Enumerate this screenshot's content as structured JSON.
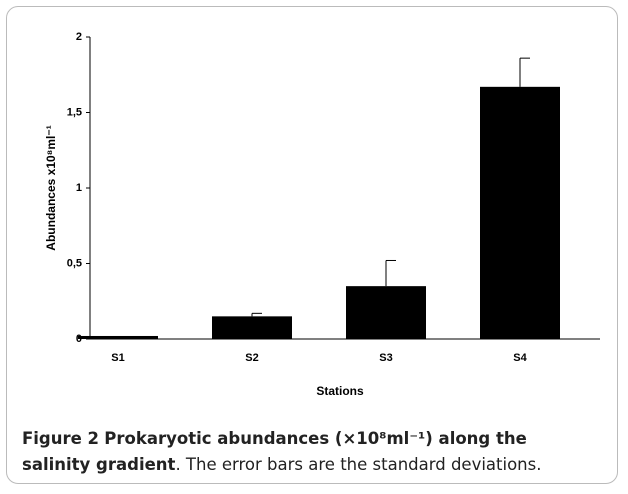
{
  "chart_data": {
    "type": "bar",
    "y_label": "Abundances x10⁸ml⁻¹",
    "x_label": "Stations",
    "categories": [
      "S1",
      "S2",
      "S3",
      "S4"
    ],
    "values": [
      0.02,
      0.15,
      0.35,
      1.67
    ],
    "errors": [
      0,
      0.02,
      0.17,
      0.19
    ],
    "color": "#000000",
    "ylim": [
      0,
      2
    ],
    "yticks": [
      0,
      {
        "value": 0.5,
        "label": "0,5"
      },
      1,
      {
        "value": 1.5,
        "label": "1,5"
      },
      2
    ],
    "grid": false
  },
  "caption": {
    "label": "Figure 2",
    "title": "Prokaryotic abundances (×10⁸ml⁻¹) along the salinity gradient",
    "text": ". The error bars are the standard deviations."
  }
}
